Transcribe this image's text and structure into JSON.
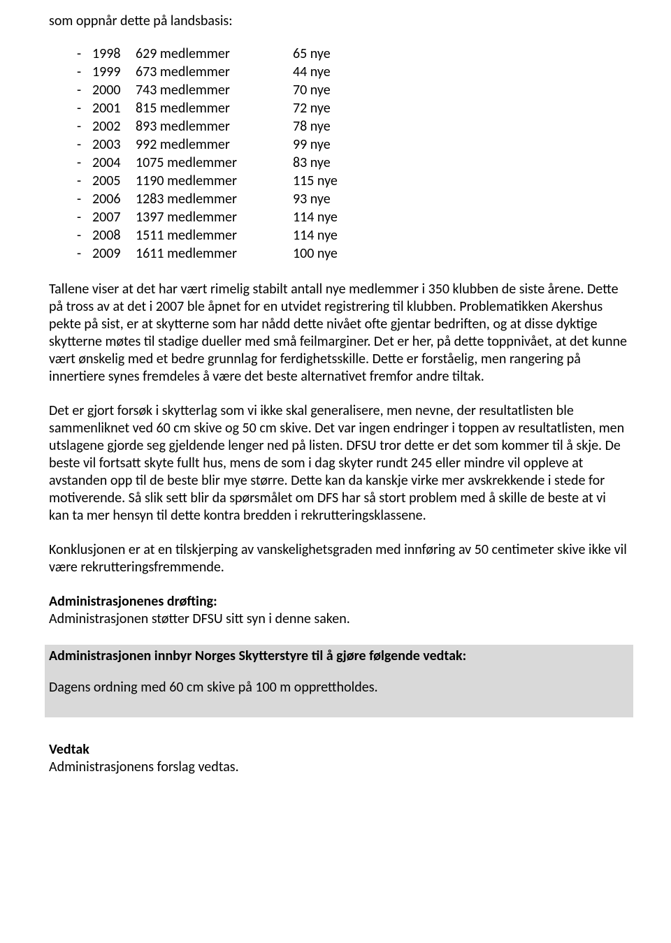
{
  "intro": "som oppnår dette på landsbasis:",
  "rows": [
    {
      "year": "1998",
      "members": "629 medlemmer",
      "new": "65 nye"
    },
    {
      "year": "1999",
      "members": "673 medlemmer",
      "new": "44 nye"
    },
    {
      "year": "2000",
      "members": "743 medlemmer",
      "new": "70 nye"
    },
    {
      "year": "2001",
      "members": "815 medlemmer",
      "new": "72 nye"
    },
    {
      "year": "2002",
      "members": "893 medlemmer",
      "new": "78 nye"
    },
    {
      "year": "2003",
      "members": "992 medlemmer",
      "new": "99 nye"
    },
    {
      "year": "2004",
      "members": "1075 medlemmer",
      "new": "83 nye"
    },
    {
      "year": "2005",
      "members": "1190 medlemmer",
      "new": "115 nye"
    },
    {
      "year": "2006",
      "members": "1283 medlemmer",
      "new": "93 nye"
    },
    {
      "year": "2007",
      "members": "1397 medlemmer",
      "new": "114 nye"
    },
    {
      "year": "2008",
      "members": "1511 medlemmer",
      "new": "114 nye"
    },
    {
      "year": "2009",
      "members": "1611 medlemmer",
      "new": "100 nye"
    }
  ],
  "para1": "Tallene viser at det har vært rimelig stabilt antall nye medlemmer i 350 klubben de siste årene. Dette på tross av at det i 2007 ble åpnet for en utvidet registrering til klubben. Problematikken Akershus pekte på sist, er at skytterne som har nådd dette nivået ofte gjentar bedriften, og at disse dyktige skytterne møtes til stadige dueller med små feilmarginer. Det er her, på dette toppnivået, at det kunne vært ønskelig med et bedre grunnlag for ferdighetsskille. Dette er forståelig, men rangering på innertiere synes fremdeles å være det beste alternativet fremfor andre tiltak.",
  "para2": "Det er gjort forsøk i skytterlag som vi ikke skal generalisere, men nevne, der resultatlisten ble sammenliknet ved 60 cm skive og 50 cm skive. Det var ingen endringer i toppen av resultatlisten, men utslagene gjorde seg gjeldende lenger ned på listen. DFSU tror dette er det som kommer til å skje. De beste vil fortsatt skyte fullt hus, mens de som i dag skyter rundt 245 eller mindre vil oppleve at avstanden opp til de beste blir mye større. Dette kan da kanskje virke mer avskrekkende i stede for motiverende. Så slik sett blir da spørsmålet om DFS har så stort problem med å skille de beste at vi kan ta mer hensyn til dette kontra bredden i rekrutteringsklassene.",
  "para3": "Konklusjonen er at en tilskjerping av vanskelighetsgraden med innføring av 50 centimeter skive ikke vil være rekrutteringsfremmende.",
  "admin_heading": "Administrasjonenes drøfting:",
  "admin_text": "Administrasjonen støtter DFSU sitt syn i denne saken.",
  "box_heading": "Administrasjonen innbyr Norges Skytterstyre til å gjøre følgende vedtak:",
  "box_text": "Dagens ordning med 60 cm skive på 100 m opprettholdes.",
  "vedtak_heading": "Vedtak",
  "vedtak_text": "Administrasjonens forslag vedtas.",
  "colors": {
    "background": "#ffffff",
    "text": "#000000",
    "box_background": "#d9d9d9"
  },
  "fontsize_pt": 15
}
